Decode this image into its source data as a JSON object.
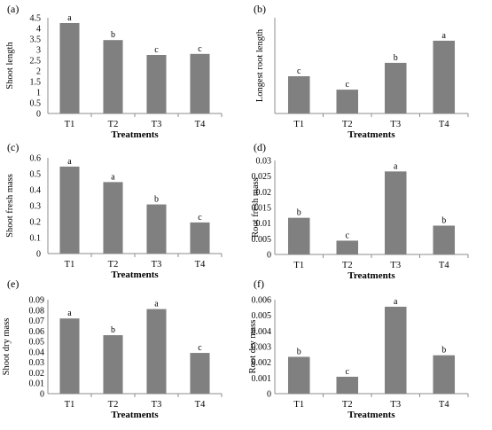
{
  "chart_data": [
    {
      "panel": "(a)",
      "type": "bar",
      "categories": [
        "T1",
        "T2",
        "T3",
        "T4"
      ],
      "values": [
        4.25,
        3.45,
        2.75,
        2.8
      ],
      "letters": [
        "a",
        "b",
        "c",
        "c"
      ],
      "ylabel": "Shoot length",
      "xlabel": "Treatments",
      "ylim": [
        0,
        4.5
      ],
      "yticks": [
        "0",
        "0.5",
        "1",
        "1.5",
        "2",
        "2.5",
        "3",
        "3.5",
        "4",
        "4.5"
      ]
    },
    {
      "panel": "(b)",
      "type": "bar",
      "categories": [
        "T1",
        "T2",
        "T3",
        "T4"
      ],
      "values": [
        1.75,
        1.12,
        2.38,
        3.42
      ],
      "letters": [
        "c",
        "c",
        "b",
        "a"
      ],
      "ylabel": "Longest root length",
      "xlabel": "Treatments",
      "ylim": [
        0,
        4.5
      ],
      "yticks": []
    },
    {
      "panel": "(c)",
      "type": "bar",
      "categories": [
        "T1",
        "T2",
        "T3",
        "T4"
      ],
      "values": [
        0.545,
        0.448,
        0.308,
        0.195
      ],
      "letters": [
        "a",
        "a",
        "b",
        "c"
      ],
      "ylabel": "Shoot fresh mass",
      "xlabel": "Treatments",
      "ylim": [
        0,
        0.6
      ],
      "yticks": [
        "0",
        "0.1",
        "0.2",
        "0.3",
        "0.4",
        "0.5",
        "0.6"
      ]
    },
    {
      "panel": "(d)",
      "type": "bar",
      "categories": [
        "T1",
        "T2",
        "T3",
        "T4"
      ],
      "values": [
        0.0117,
        0.0044,
        0.0265,
        0.0092
      ],
      "letters": [
        "b",
        "c",
        "a",
        "b"
      ],
      "ylabel": "Root fresh mass",
      "xlabel": "Treatments",
      "ylim": [
        0,
        0.03
      ],
      "yticks": [
        "0",
        "0.005",
        "0.01",
        "0.015",
        "0.02",
        "0.025",
        "0.03"
      ]
    },
    {
      "panel": "(e)",
      "type": "bar",
      "categories": [
        "T1",
        "T2",
        "T3",
        "T4"
      ],
      "values": [
        0.072,
        0.056,
        0.081,
        0.039
      ],
      "letters": [
        "a",
        "b",
        "a",
        "c"
      ],
      "ylabel": "Shoot dry mass",
      "xlabel": "Treatments",
      "ylim": [
        0,
        0.09
      ],
      "yticks": [
        "0",
        "0.01",
        "0.02",
        "0.03",
        "0.04",
        "0.05",
        "0.06",
        "0.07",
        "0.08",
        "0.09"
      ]
    },
    {
      "panel": "(f)",
      "type": "bar",
      "categories": [
        "T1",
        "T2",
        "T3",
        "T4"
      ],
      "values": [
        0.00235,
        0.00108,
        0.00555,
        0.00245
      ],
      "letters": [
        "b",
        "c",
        "a",
        "b"
      ],
      "ylabel": "Root dry mass",
      "xlabel": "Treatments",
      "ylim": [
        0,
        0.006
      ],
      "yticks": [
        "0",
        "0.001",
        "0.002",
        "0.003",
        "0.004",
        "0.005",
        "0.006"
      ]
    }
  ],
  "colors": {
    "bar": "#808080",
    "axis": "#8c8c8c",
    "text": "#000000"
  }
}
